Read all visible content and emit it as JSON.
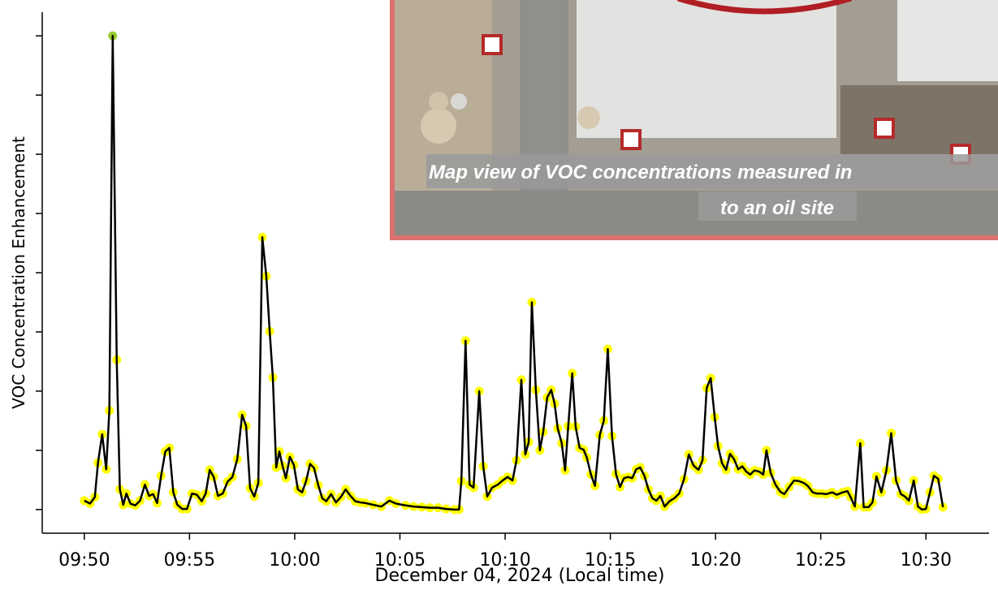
{
  "chart_data": {
    "type": "line",
    "x_label": "December 04, 2024 (Local time)",
    "y_label": "VOC Concentration Enhancement",
    "xlim": [
      48,
      93
    ],
    "ylim": [
      -0.4,
      8.4
    ],
    "xticks": [
      {
        "value": 50,
        "label": "09:50"
      },
      {
        "value": 55,
        "label": "09:55"
      },
      {
        "value": 60,
        "label": "10:00"
      },
      {
        "value": 65,
        "label": "10:05"
      },
      {
        "value": 70,
        "label": "10:10"
      },
      {
        "value": 75,
        "label": "10:15"
      },
      {
        "value": 80,
        "label": "10:20"
      },
      {
        "value": 85,
        "label": "10:25"
      },
      {
        "value": 90,
        "label": "10:30"
      }
    ],
    "yticks": [
      0,
      1,
      2,
      3,
      4,
      5,
      6,
      7,
      8
    ],
    "color": "#000000",
    "marker_color": "#ffff00",
    "highlight_color": "#9acd32",
    "x": [
      50.0,
      50.27,
      50.5,
      50.65,
      50.85,
      51.04,
      51.19,
      51.35,
      51.54,
      51.69,
      51.85,
      52.0,
      52.19,
      52.42,
      52.65,
      52.88,
      53.08,
      53.27,
      53.46,
      53.65,
      53.85,
      54.04,
      54.23,
      54.42,
      54.65,
      54.88,
      55.12,
      55.35,
      55.58,
      55.77,
      55.96,
      56.15,
      56.35,
      56.58,
      56.81,
      57.04,
      57.27,
      57.5,
      57.69,
      57.88,
      58.08,
      58.27,
      58.46,
      58.65,
      58.81,
      58.96,
      59.12,
      59.27,
      59.42,
      59.58,
      59.77,
      59.96,
      60.15,
      60.35,
      60.54,
      60.73,
      60.92,
      61.12,
      61.31,
      61.5,
      61.73,
      61.96,
      62.19,
      62.42,
      62.65,
      62.88,
      63.12,
      63.35,
      63.73,
      64.12,
      64.5,
      64.81,
      65.27,
      65.65,
      66.04,
      66.42,
      66.81,
      67.19,
      67.58,
      67.81,
      67.92,
      68.12,
      68.31,
      68.5,
      68.77,
      68.96,
      69.15,
      69.38,
      69.65,
      69.88,
      70.12,
      70.35,
      70.54,
      70.77,
      70.96,
      71.12,
      71.27,
      71.46,
      71.65,
      71.81,
      72.0,
      72.19,
      72.35,
      72.5,
      72.69,
      72.85,
      73.0,
      73.19,
      73.35,
      73.54,
      73.73,
      73.88,
      74.08,
      74.27,
      74.5,
      74.69,
      74.88,
      75.08,
      75.27,
      75.46,
      75.65,
      75.85,
      76.04,
      76.23,
      76.42,
      76.62,
      76.81,
      77.0,
      77.19,
      77.38,
      77.58,
      77.81,
      78.04,
      78.27,
      78.5,
      78.73,
      78.96,
      79.19,
      79.38,
      79.58,
      79.77,
      79.96,
      80.12,
      80.31,
      80.5,
      80.69,
      80.88,
      81.08,
      81.27,
      81.46,
      81.65,
      81.85,
      82.08,
      82.27,
      82.42,
      82.62,
      82.85,
      83.08,
      83.27,
      83.5,
      83.73,
      83.96,
      84.19,
      84.38,
      84.62,
      84.81,
      85.04,
      85.27,
      85.54,
      85.77,
      86.04,
      86.27,
      86.42,
      86.62,
      86.88,
      87.04,
      87.27,
      87.46,
      87.65,
      87.88,
      88.12,
      88.35,
      88.58,
      88.81,
      89.0,
      89.19,
      89.42,
      89.62,
      89.81,
      90.0,
      90.19,
      90.38,
      90.58,
      90.81
    ],
    "values": [
      0.15,
      0.1,
      0.21,
      0.79,
      1.27,
      0.68,
      1.67,
      8.0,
      2.53,
      0.34,
      0.08,
      0.27,
      0.1,
      0.07,
      0.15,
      0.42,
      0.23,
      0.26,
      0.11,
      0.57,
      0.98,
      1.04,
      0.29,
      0.08,
      0.01,
      0.01,
      0.27,
      0.25,
      0.14,
      0.27,
      0.67,
      0.55,
      0.23,
      0.27,
      0.47,
      0.55,
      0.85,
      1.6,
      1.41,
      0.36,
      0.22,
      0.45,
      4.6,
      3.94,
      3.01,
      2.23,
      0.71,
      0.98,
      0.74,
      0.53,
      0.89,
      0.75,
      0.34,
      0.29,
      0.48,
      0.77,
      0.7,
      0.41,
      0.19,
      0.14,
      0.26,
      0.12,
      0.21,
      0.34,
      0.23,
      0.14,
      0.12,
      0.11,
      0.08,
      0.05,
      0.15,
      0.1,
      0.07,
      0.05,
      0.04,
      0.03,
      0.03,
      0.01,
      0.0,
      0.0,
      0.48,
      2.85,
      0.42,
      0.37,
      2.0,
      0.73,
      0.22,
      0.37,
      0.42,
      0.49,
      0.55,
      0.49,
      0.83,
      2.19,
      0.93,
      1.14,
      3.5,
      2.02,
      1.0,
      1.31,
      1.89,
      2.02,
      1.79,
      1.37,
      1.12,
      0.66,
      1.41,
      2.3,
      1.4,
      1.04,
      1.01,
      0.88,
      0.59,
      0.4,
      1.26,
      1.5,
      2.71,
      1.24,
      0.6,
      0.38,
      0.53,
      0.55,
      0.53,
      0.68,
      0.71,
      0.57,
      0.34,
      0.19,
      0.15,
      0.23,
      0.05,
      0.14,
      0.19,
      0.27,
      0.51,
      0.93,
      0.74,
      0.67,
      0.83,
      2.05,
      2.22,
      1.56,
      1.07,
      0.78,
      0.67,
      0.94,
      0.85,
      0.68,
      0.73,
      0.64,
      0.59,
      0.66,
      0.64,
      0.59,
      1.0,
      0.62,
      0.42,
      0.3,
      0.26,
      0.38,
      0.49,
      0.48,
      0.45,
      0.4,
      0.29,
      0.27,
      0.27,
      0.26,
      0.29,
      0.25,
      0.29,
      0.31,
      0.21,
      0.05,
      1.12,
      0.04,
      0.04,
      0.12,
      0.56,
      0.29,
      0.66,
      1.29,
      0.49,
      0.26,
      0.22,
      0.15,
      0.49,
      0.05,
      0.0,
      0.01,
      0.29,
      0.57,
      0.52,
      0.04
    ]
  },
  "inset": {
    "caption": [
      "Map view of VOC concentrations measured in",
      "to an oil site"
    ]
  }
}
